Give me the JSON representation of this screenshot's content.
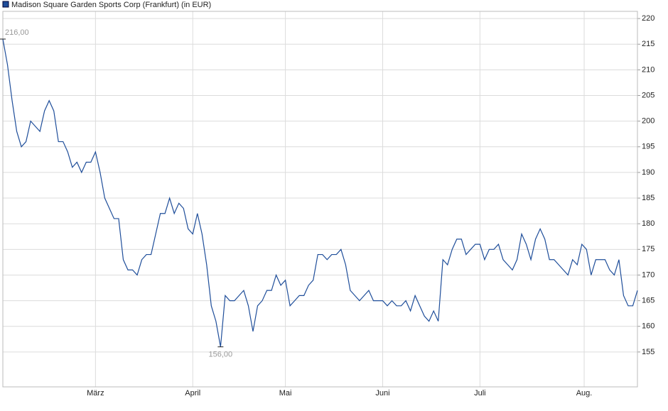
{
  "chart_data": {
    "type": "line",
    "series": [
      {
        "name": "Madison Square Garden Sports Corp (Frankfurt) (in EUR)",
        "color": "#1f4e9a",
        "values": [
          216,
          211,
          204,
          198,
          195,
          196,
          200,
          199,
          198,
          202,
          204,
          202,
          196,
          196,
          194,
          191,
          192,
          190,
          192,
          192,
          194,
          190,
          185,
          183,
          181,
          181,
          173,
          171,
          171,
          170,
          173,
          174,
          174,
          178,
          182,
          182,
          185,
          182,
          184,
          183,
          179,
          178,
          182,
          178,
          172,
          164,
          161,
          156,
          166,
          165,
          165,
          166,
          167,
          164,
          159,
          164,
          165,
          167,
          167,
          170,
          168,
          169,
          164,
          165,
          166,
          166,
          168,
          169,
          174,
          174,
          173,
          174,
          174,
          175,
          172,
          167,
          166,
          165,
          166,
          167,
          165,
          165,
          165,
          164,
          165,
          164,
          164,
          165,
          163,
          166,
          164,
          162,
          161,
          163,
          161,
          173,
          172,
          175,
          177,
          177,
          174,
          175,
          176,
          176,
          173,
          175,
          175,
          176,
          173,
          172,
          171,
          173,
          178,
          176,
          173,
          177,
          179,
          177,
          173,
          173,
          172,
          171,
          170,
          173,
          172,
          176,
          175,
          170,
          173,
          173,
          173,
          171,
          170,
          173,
          166,
          164,
          164,
          167
        ]
      }
    ],
    "xlim": [
      0,
      137
    ],
    "xticks": [
      {
        "value": 20,
        "label": "März"
      },
      {
        "value": 41,
        "label": "April"
      },
      {
        "value": 61,
        "label": "Mai"
      },
      {
        "value": 82,
        "label": "Juni"
      },
      {
        "value": 103,
        "label": "Juli"
      },
      {
        "value": 125.5,
        "label": "Aug."
      }
    ],
    "ylim": [
      148.2,
      221.4
    ],
    "yticks": [
      155,
      160,
      165,
      170,
      175,
      180,
      185,
      190,
      195,
      200,
      205,
      210,
      215,
      220
    ],
    "grid": true,
    "annotations": [
      {
        "text": "216,00",
        "value": 216,
        "x": 0
      },
      {
        "text": "156,00",
        "value": 156,
        "x": 47
      }
    ]
  }
}
